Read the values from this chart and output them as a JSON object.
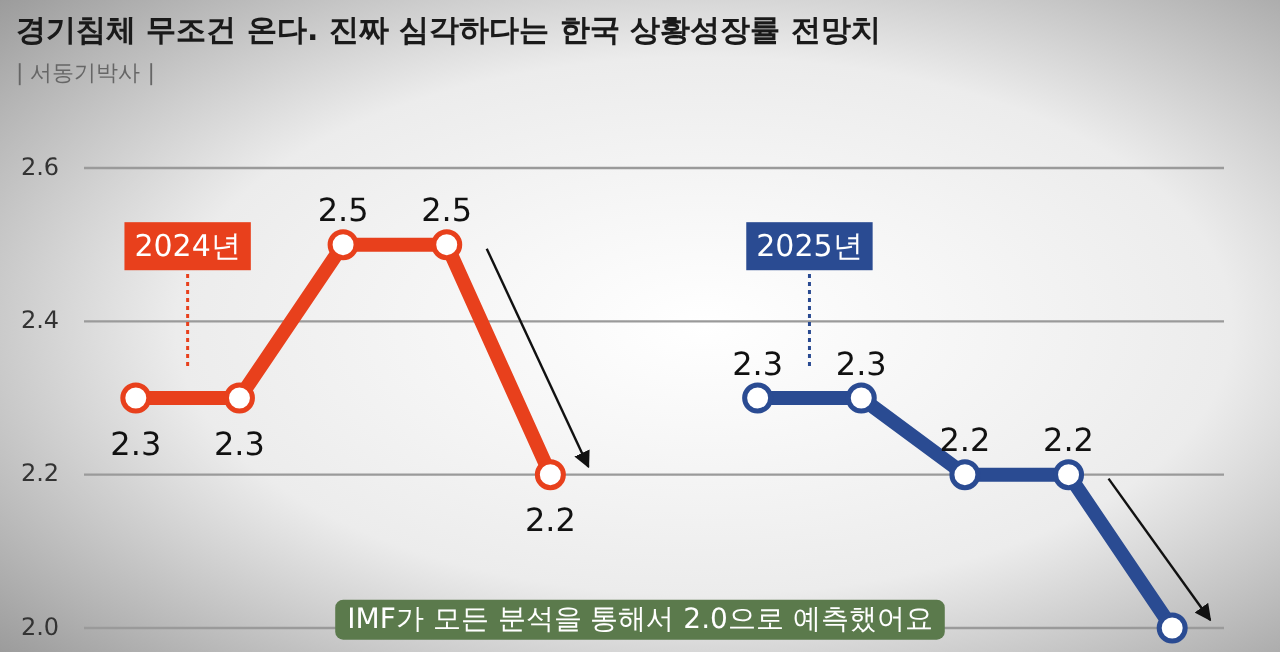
{
  "chart_data": {
    "type": "line",
    "title": "경기침체 무조건 온다. 진짜 심각하다는 한국 상황성장률 전망치",
    "subtitle": "| 서동기박사 |",
    "annotations": [
      "IMF가 모든 분석을 통해서 2.0으로 예측했어요"
    ],
    "categories": [
      null,
      null,
      null,
      null,
      null,
      null,
      null,
      null,
      null,
      null,
      null
    ],
    "series": [
      {
        "name": "2024년",
        "color": "#e8401c",
        "values": [
          2.3,
          2.3,
          2.5,
          2.5,
          2.2,
          null,
          null,
          null,
          null,
          null,
          null
        ],
        "value_labels": [
          "2.3",
          "2.3",
          "2.5",
          "2.5",
          "2.2",
          null,
          null,
          null,
          null,
          null,
          null
        ]
      },
      {
        "name": "2025년",
        "color": "#2a4b92",
        "values": [
          null,
          null,
          null,
          null,
          null,
          null,
          2.3,
          2.3,
          2.2,
          2.2,
          2.0
        ],
        "value_labels": [
          null,
          null,
          null,
          null,
          null,
          null,
          "2.3",
          "2.3",
          "2.2",
          "2.2",
          null
        ]
      }
    ],
    "ylim": [
      2.0,
      2.6
    ],
    "yticks": [
      {
        "value": 2.0,
        "label": "2.0"
      },
      {
        "value": 2.2,
        "label": "2.2"
      },
      {
        "value": 2.4,
        "label": "2.4"
      },
      {
        "value": 2.6,
        "label": "2.6"
      }
    ],
    "grid": "y",
    "marker": "circle",
    "line_style": "solid",
    "legend": false
  }
}
